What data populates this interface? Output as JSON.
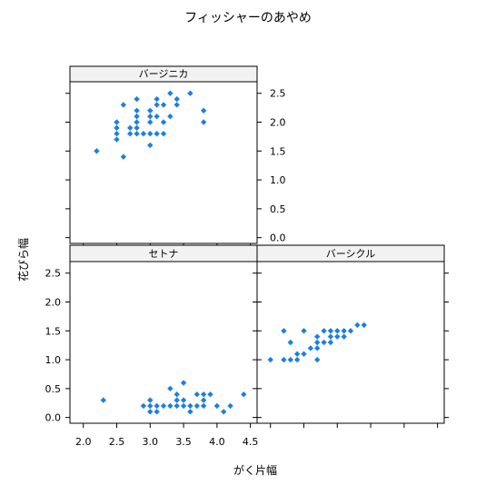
{
  "chart_data": {
    "type": "scatter",
    "title": "フィッシャーのあやめ",
    "xlabel": "がく片幅",
    "ylabel": "花びら幅",
    "xlim": [
      1.8,
      4.6
    ],
    "ylim": [
      -0.1,
      2.7
    ],
    "x_ticks": [
      "2.0",
      "2.5",
      "3.0",
      "3.5",
      "4.0",
      "4.5"
    ],
    "y_ticks": [
      "0.0",
      "0.5",
      "1.0",
      "1.5",
      "2.0",
      "2.5"
    ],
    "grid": false,
    "point_color": "#1e7fe0",
    "panels": [
      {
        "name": "バージニカ",
        "points": [
          [
            2.2,
            1.5
          ],
          [
            2.5,
            1.7
          ],
          [
            2.5,
            1.8
          ],
          [
            2.5,
            1.9
          ],
          [
            2.5,
            2.0
          ],
          [
            2.6,
            1.4
          ],
          [
            2.6,
            2.3
          ],
          [
            2.7,
            1.8
          ],
          [
            2.7,
            1.9
          ],
          [
            2.8,
            1.8
          ],
          [
            2.8,
            1.9
          ],
          [
            2.8,
            2.0
          ],
          [
            2.8,
            2.1
          ],
          [
            2.8,
            2.2
          ],
          [
            2.8,
            2.4
          ],
          [
            2.9,
            1.8
          ],
          [
            3.0,
            1.6
          ],
          [
            3.0,
            1.8
          ],
          [
            3.0,
            2.0
          ],
          [
            3.0,
            2.1
          ],
          [
            3.0,
            2.2
          ],
          [
            3.1,
            1.8
          ],
          [
            3.1,
            2.1
          ],
          [
            3.1,
            2.3
          ],
          [
            3.1,
            2.4
          ],
          [
            3.2,
            1.8
          ],
          [
            3.2,
            2.0
          ],
          [
            3.2,
            2.3
          ],
          [
            3.3,
            2.1
          ],
          [
            3.3,
            2.5
          ],
          [
            3.4,
            2.3
          ],
          [
            3.4,
            2.4
          ],
          [
            3.6,
            2.5
          ],
          [
            3.8,
            2.0
          ],
          [
            3.8,
            2.2
          ]
        ]
      },
      {
        "name": "セトナ",
        "points": [
          [
            2.3,
            0.3
          ],
          [
            2.9,
            0.2
          ],
          [
            3.0,
            0.1
          ],
          [
            3.0,
            0.2
          ],
          [
            3.0,
            0.3
          ],
          [
            3.1,
            0.1
          ],
          [
            3.1,
            0.2
          ],
          [
            3.2,
            0.2
          ],
          [
            3.3,
            0.2
          ],
          [
            3.3,
            0.5
          ],
          [
            3.4,
            0.2
          ],
          [
            3.4,
            0.3
          ],
          [
            3.4,
            0.4
          ],
          [
            3.5,
            0.2
          ],
          [
            3.5,
            0.3
          ],
          [
            3.5,
            0.6
          ],
          [
            3.6,
            0.1
          ],
          [
            3.6,
            0.2
          ],
          [
            3.7,
            0.2
          ],
          [
            3.7,
            0.4
          ],
          [
            3.8,
            0.2
          ],
          [
            3.8,
            0.3
          ],
          [
            3.8,
            0.4
          ],
          [
            3.9,
            0.4
          ],
          [
            4.0,
            0.2
          ],
          [
            4.1,
            0.1
          ],
          [
            4.2,
            0.2
          ],
          [
            4.4,
            0.4
          ]
        ]
      },
      {
        "name": "バーシクル",
        "points": [
          [
            2.0,
            1.0
          ],
          [
            2.2,
            1.0
          ],
          [
            2.2,
            1.5
          ],
          [
            2.3,
            1.0
          ],
          [
            2.3,
            1.3
          ],
          [
            2.4,
            1.0
          ],
          [
            2.4,
            1.1
          ],
          [
            2.5,
            1.1
          ],
          [
            2.5,
            1.5
          ],
          [
            2.6,
            1.2
          ],
          [
            2.7,
            1.0
          ],
          [
            2.7,
            1.2
          ],
          [
            2.7,
            1.3
          ],
          [
            2.7,
            1.4
          ],
          [
            2.8,
            1.3
          ],
          [
            2.8,
            1.5
          ],
          [
            2.9,
            1.3
          ],
          [
            2.9,
            1.4
          ],
          [
            2.9,
            1.5
          ],
          [
            3.0,
            1.4
          ],
          [
            3.0,
            1.5
          ],
          [
            3.1,
            1.4
          ],
          [
            3.1,
            1.5
          ],
          [
            3.2,
            1.5
          ],
          [
            3.3,
            1.6
          ],
          [
            3.4,
            1.6
          ]
        ]
      }
    ]
  }
}
